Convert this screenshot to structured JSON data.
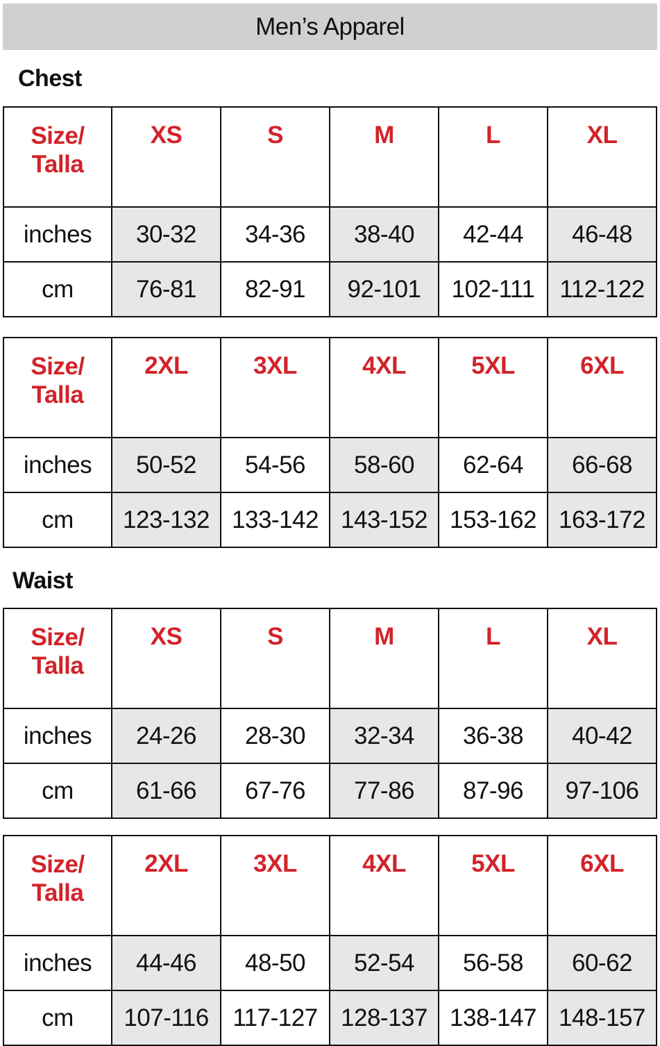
{
  "title": "Men’s Apparel",
  "colors": {
    "header_red": "#d2232a",
    "title_bar": "#cfd0d2",
    "shade": "#e6e7e8"
  },
  "sections": [
    {
      "label": "Chest",
      "tables": [
        {
          "header_label": [
            "Size/",
            "Talla"
          ],
          "sizes": [
            "XS",
            "S",
            "M",
            "L",
            "XL"
          ],
          "rows": [
            {
              "unit": "inches",
              "values": [
                "30-32",
                "34-36",
                "38-40",
                "42-44",
                "46-48"
              ]
            },
            {
              "unit": "cm",
              "values": [
                "76-81",
                "82-91",
                "92-101",
                "102-111",
                "112-122"
              ]
            }
          ]
        },
        {
          "header_label": [
            "Size/",
            "Talla"
          ],
          "sizes": [
            "2XL",
            "3XL",
            "4XL",
            "5XL",
            "6XL"
          ],
          "rows": [
            {
              "unit": "inches",
              "values": [
                "50-52",
                "54-56",
                "58-60",
                "62-64",
                "66-68"
              ]
            },
            {
              "unit": "cm",
              "values": [
                "123-132",
                "133-142",
                "143-152",
                "153-162",
                "163-172"
              ]
            }
          ]
        }
      ]
    },
    {
      "label": "Waist",
      "tables": [
        {
          "header_label": [
            "Size/",
            "Talla"
          ],
          "sizes": [
            "XS",
            "S",
            "M",
            "L",
            "XL"
          ],
          "rows": [
            {
              "unit": "inches",
              "values": [
                "24-26",
                "28-30",
                "32-34",
                "36-38",
                "40-42"
              ]
            },
            {
              "unit": "cm",
              "values": [
                "61-66",
                "67-76",
                "77-86",
                "87-96",
                "97-106"
              ]
            }
          ]
        },
        {
          "header_label": [
            "Size/",
            "Talla"
          ],
          "sizes": [
            "2XL",
            "3XL",
            "4XL",
            "5XL",
            "6XL"
          ],
          "rows": [
            {
              "unit": "inches",
              "values": [
                "44-46",
                "48-50",
                "52-54",
                "56-58",
                "60-62"
              ]
            },
            {
              "unit": "cm",
              "values": [
                "107-116",
                "117-127",
                "128-137",
                "138-147",
                "148-157"
              ]
            }
          ]
        }
      ]
    }
  ]
}
